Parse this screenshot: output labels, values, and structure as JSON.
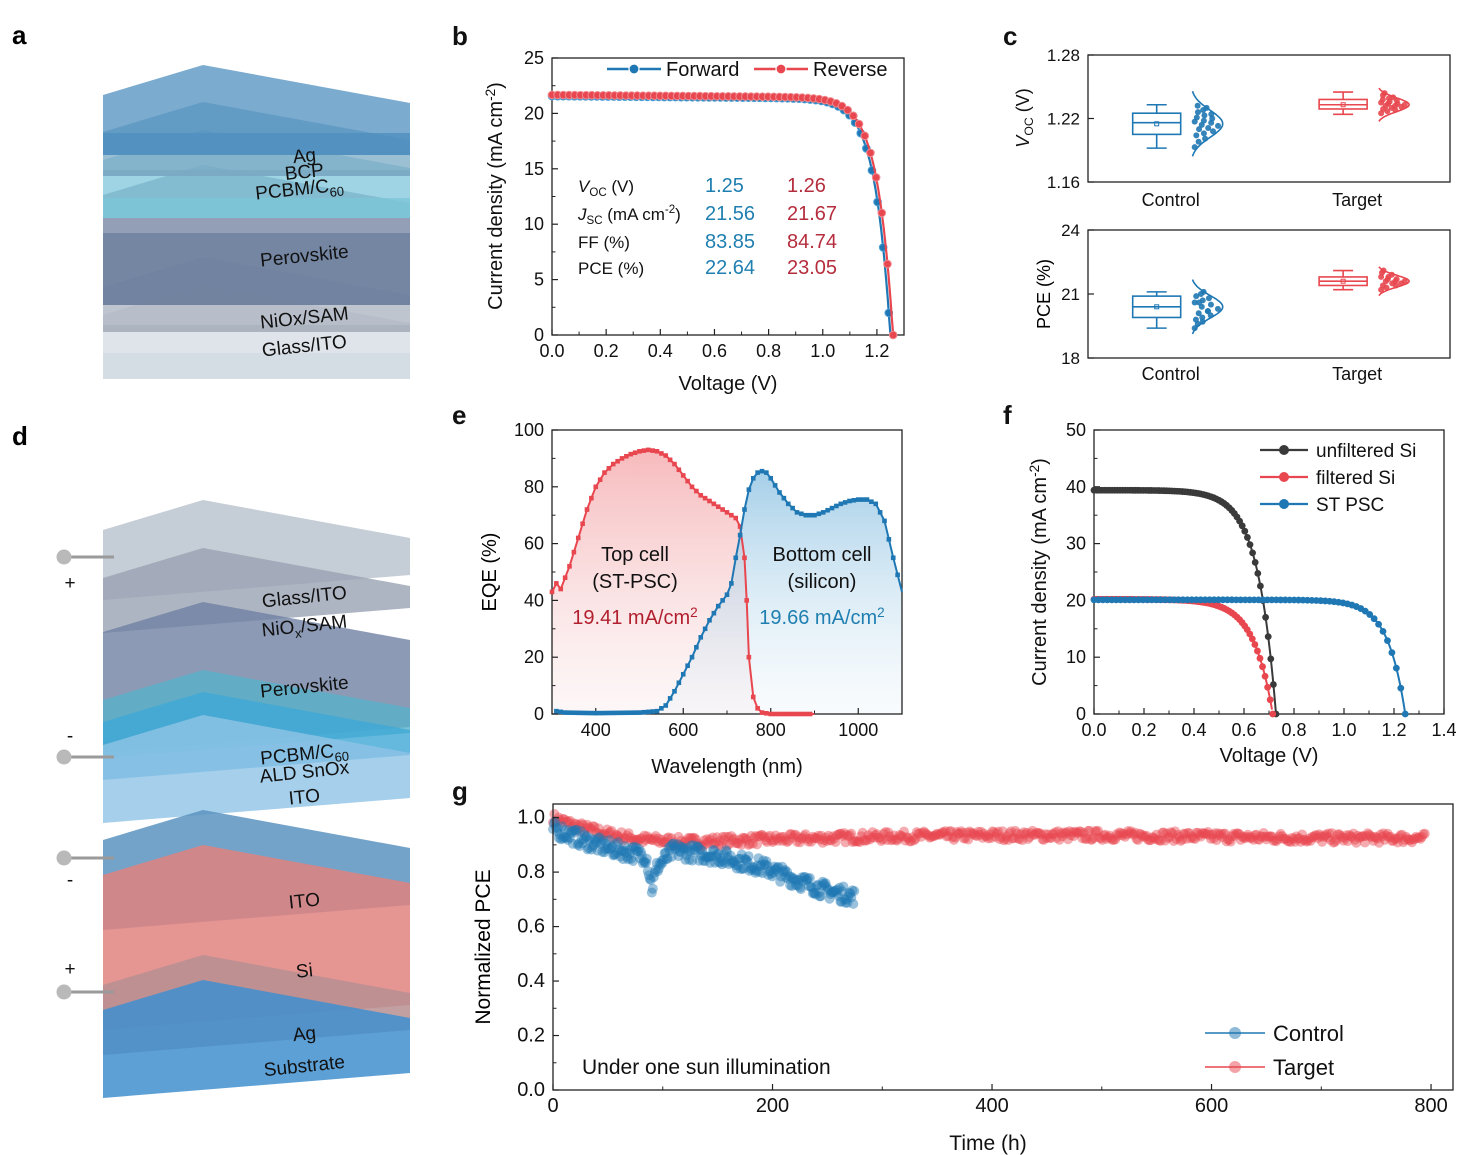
{
  "colors": {
    "blue": "#1f78b4",
    "blue_marker": "#2a86c6",
    "red": "#e8474f",
    "dark_red": "#b22030",
    "text_blue": "#1f7fb0",
    "text_red": "#b52d3d",
    "black": "#333333",
    "layer_blue": "#4f87ad",
    "layer_perovskite": "#7688a8",
    "layer_etl": "#5bb4cf",
    "layer_glass": "#c9d2dc",
    "layer_si": "#e59793",
    "layer_ito": "#6aa3c8"
  },
  "panels": {
    "a": {
      "label": "a",
      "layers": [
        "Ag",
        "BCP",
        "PCBM/C60",
        "Perovskite",
        "NiOx/SAM",
        "Glass/ITO"
      ]
    },
    "d": {
      "label": "d",
      "top_layers": [
        "Glass/ITO",
        "NiOx/SAM",
        "Perovskite",
        "PCBM/C60",
        "ALD SnOx",
        "ITO"
      ],
      "bottom_layers": [
        "ITO",
        "Si",
        "Ag",
        "Substrate"
      ],
      "signs": [
        "+",
        "-",
        "-",
        "+"
      ]
    }
  },
  "chart_data": [
    {
      "id": "b",
      "type": "line",
      "panel_label": "b",
      "xlabel": "Voltage (V)",
      "ylabel": "Current density (mA cm-2)",
      "xlim": [
        0,
        1.3
      ],
      "ylim": [
        0,
        25
      ],
      "xticks": [
        "0.0",
        "0.2",
        "0.4",
        "0.6",
        "0.8",
        "1.0",
        "1.2"
      ],
      "yticks": [
        "0",
        "5",
        "10",
        "15",
        "20",
        "25"
      ],
      "legend": "top-right",
      "series": [
        {
          "name": "Forward",
          "color": "#1f78b4",
          "jsc": 21.56,
          "voc": 1.25,
          "n": 3.2,
          "points": [
            [
              0.0,
              21.56
            ],
            [
              0.2,
              21.52
            ],
            [
              0.4,
              21.48
            ],
            [
              0.6,
              21.43
            ],
            [
              0.8,
              21.35
            ],
            [
              1.0,
              21.1
            ],
            [
              1.05,
              20.8
            ],
            [
              1.1,
              19.8
            ],
            [
              1.15,
              16.8
            ],
            [
              1.2,
              10.5
            ],
            [
              1.23,
              5.4
            ],
            [
              1.25,
              0.0
            ]
          ]
        },
        {
          "name": "Reverse",
          "color": "#e8474f",
          "jsc": 21.67,
          "voc": 1.26,
          "n": 3.5,
          "points": [
            [
              0.0,
              21.67
            ],
            [
              0.2,
              21.64
            ],
            [
              0.4,
              21.6
            ],
            [
              0.6,
              21.57
            ],
            [
              0.8,
              21.5
            ],
            [
              1.0,
              21.3
            ],
            [
              1.05,
              21.1
            ],
            [
              1.1,
              20.3
            ],
            [
              1.15,
              17.8
            ],
            [
              1.2,
              12.0
            ],
            [
              1.23,
              6.5
            ],
            [
              1.26,
              0.0
            ]
          ]
        }
      ],
      "table": {
        "rows": [
          {
            "label": "VOC (V)",
            "forward": "1.25",
            "reverse": "1.26"
          },
          {
            "label": "JSC (mA cm-2)",
            "forward": "21.56",
            "reverse": "21.67"
          },
          {
            "label": "FF (%)",
            "forward": "83.85",
            "reverse": "84.74"
          },
          {
            "label": "PCE (%)",
            "forward": "22.64",
            "reverse": "23.05"
          }
        ]
      }
    },
    {
      "id": "c1",
      "type": "box",
      "panel_label": "c",
      "ylabel": "VOC (V)",
      "ylim": [
        1.16,
        1.28
      ],
      "yticks": [
        "1.16",
        "1.22",
        "1.28"
      ],
      "categories": [
        "Control",
        "Target"
      ],
      "boxes": [
        {
          "name": "Control",
          "color": "#1f78b4",
          "min": 1.192,
          "q1": 1.205,
          "median": 1.216,
          "mean": 1.215,
          "q3": 1.225,
          "max": 1.233,
          "points": [
            1.193,
            1.198,
            1.201,
            1.204,
            1.206,
            1.208,
            1.21,
            1.211,
            1.213,
            1.214,
            1.216,
            1.217,
            1.218,
            1.22,
            1.221,
            1.223,
            1.224,
            1.226,
            1.228,
            1.23,
            1.232
          ]
        },
        {
          "name": "Target",
          "color": "#e8474f",
          "min": 1.224,
          "q1": 1.229,
          "median": 1.233,
          "mean": 1.233,
          "q3": 1.238,
          "max": 1.245,
          "points": [
            1.225,
            1.227,
            1.228,
            1.229,
            1.23,
            1.231,
            1.232,
            1.232,
            1.233,
            1.234,
            1.234,
            1.235,
            1.236,
            1.237,
            1.238,
            1.239,
            1.24,
            1.242,
            1.244
          ]
        }
      ]
    },
    {
      "id": "c2",
      "type": "box",
      "panel_label": "",
      "ylabel": "PCE (%)",
      "ylim": [
        18,
        24
      ],
      "yticks": [
        "18",
        "21",
        "24"
      ],
      "categories": [
        "Control",
        "Target"
      ],
      "boxes": [
        {
          "name": "Control",
          "color": "#1f78b4",
          "min": 19.4,
          "q1": 19.9,
          "median": 20.4,
          "mean": 20.4,
          "q3": 20.9,
          "max": 21.1,
          "points": [
            19.4,
            19.6,
            19.7,
            19.8,
            19.9,
            20.0,
            20.1,
            20.2,
            20.3,
            20.4,
            20.5,
            20.6,
            20.7,
            20.8,
            20.9,
            21.0,
            21.1,
            20.6,
            20.2
          ]
        },
        {
          "name": "Target",
          "color": "#e8474f",
          "min": 21.2,
          "q1": 21.4,
          "median": 21.6,
          "mean": 21.6,
          "q3": 21.8,
          "max": 22.1,
          "points": [
            21.2,
            21.3,
            21.4,
            21.4,
            21.5,
            21.5,
            21.6,
            21.6,
            21.6,
            21.7,
            21.7,
            21.8,
            21.8,
            21.9,
            22.0,
            22.1
          ]
        }
      ]
    },
    {
      "id": "e",
      "type": "area",
      "panel_label": "e",
      "xlabel": "Wavelength (nm)",
      "ylabel": "EQE (%)",
      "xlim": [
        300,
        1100
      ],
      "ylim": [
        0,
        100
      ],
      "xticks": [
        "400",
        "600",
        "800",
        "1000"
      ],
      "yticks": [
        "0",
        "20",
        "40",
        "60",
        "80",
        "100"
      ],
      "series": [
        {
          "name": "Top cell",
          "color": "#e8474f",
          "points": [
            [
              300,
              43
            ],
            [
              310,
              46
            ],
            [
              320,
              44
            ],
            [
              330,
              48
            ],
            [
              340,
              52
            ],
            [
              360,
              62
            ],
            [
              380,
              72
            ],
            [
              400,
              80
            ],
            [
              420,
              85
            ],
            [
              440,
              88
            ],
            [
              460,
              90
            ],
            [
              480,
              91.5
            ],
            [
              500,
              92.5
            ],
            [
              520,
              93
            ],
            [
              540,
              92.5
            ],
            [
              560,
              91
            ],
            [
              580,
              88
            ],
            [
              600,
              84
            ],
            [
              620,
              80
            ],
            [
              640,
              77
            ],
            [
              660,
              75
            ],
            [
              680,
              73
            ],
            [
              700,
              71
            ],
            [
              720,
              69
            ],
            [
              730,
              66
            ],
            [
              740,
              55
            ],
            [
              745,
              40
            ],
            [
              750,
              20
            ],
            [
              760,
              6
            ],
            [
              770,
              2
            ],
            [
              780,
              0.5
            ],
            [
              800,
              0
            ],
            [
              900,
              0
            ]
          ]
        },
        {
          "name": "Bottom cell",
          "color": "#1f78b4",
          "points": [
            [
              310,
              1
            ],
            [
              330,
              0.5
            ],
            [
              400,
              0.3
            ],
            [
              500,
              0.5
            ],
            [
              540,
              1
            ],
            [
              560,
              3
            ],
            [
              580,
              8
            ],
            [
              600,
              14
            ],
            [
              620,
              20
            ],
            [
              640,
              27
            ],
            [
              660,
              33
            ],
            [
              680,
              38
            ],
            [
              700,
              42
            ],
            [
              710,
              46
            ],
            [
              720,
              55
            ],
            [
              730,
              63
            ],
            [
              740,
              72
            ],
            [
              750,
              79
            ],
            [
              760,
              83
            ],
            [
              770,
              85
            ],
            [
              780,
              85.5
            ],
            [
              790,
              85
            ],
            [
              800,
              83
            ],
            [
              820,
              78
            ],
            [
              840,
              74
            ],
            [
              860,
              71
            ],
            [
              880,
              70
            ],
            [
              900,
              70
            ],
            [
              920,
              71
            ],
            [
              940,
              72.5
            ],
            [
              960,
              74
            ],
            [
              980,
              75
            ],
            [
              1000,
              75.5
            ],
            [
              1020,
              75.5
            ],
            [
              1040,
              74
            ],
            [
              1060,
              68
            ],
            [
              1080,
              55
            ],
            [
              1100,
              43
            ]
          ]
        }
      ],
      "annotations": {
        "top_title": "Top cell",
        "top_sub": "(ST-PSC)",
        "top_jsc": "19.41 mA/cm2",
        "bottom_title": "Bottom cell",
        "bottom_sub": "(silicon)",
        "bottom_jsc": "19.66 mA/cm2"
      }
    },
    {
      "id": "f",
      "type": "line",
      "panel_label": "f",
      "xlabel": "Voltage (V)",
      "ylabel": "Current density (mA cm-2)",
      "xlim": [
        0,
        1.4
      ],
      "ylim": [
        0,
        50
      ],
      "xticks": [
        "0.0",
        "0.2",
        "0.4",
        "0.6",
        "0.8",
        "1.0",
        "1.2",
        "1.4"
      ],
      "yticks": [
        "0",
        "10",
        "20",
        "30",
        "40",
        "50"
      ],
      "legend": "top-right",
      "series": [
        {
          "name": "unfiltered Si",
          "color": "#3a3a3a",
          "jsc": 39.4,
          "voc": 0.728,
          "n": 1.65
        },
        {
          "name": "filtered Si",
          "color": "#e8474f",
          "jsc": 20.2,
          "voc": 0.715,
          "n": 1.55
        },
        {
          "name": "ST PSC",
          "color": "#1f78b4",
          "jsc": 20.1,
          "voc": 1.245,
          "n": 3.0
        }
      ]
    },
    {
      "id": "g",
      "type": "scatter",
      "panel_label": "g",
      "xlabel": "Time (h)",
      "ylabel": "Normalized PCE",
      "xlim": [
        0,
        820
      ],
      "ylim": [
        0,
        1.05
      ],
      "xticks": [
        "0",
        "200",
        "400",
        "600",
        "800"
      ],
      "yticks": [
        "0.0",
        "0.2",
        "0.4",
        "0.6",
        "0.8",
        "1.0"
      ],
      "legend": "bottom-right",
      "annotation": "Under one sun illumination",
      "series": [
        {
          "name": "Control",
          "color": "#1f78b4",
          "x_end": 275,
          "trend": [
            [
              0,
              0.96
            ],
            [
              20,
              0.93
            ],
            [
              40,
              0.9
            ],
            [
              60,
              0.88
            ],
            [
              85,
              0.86
            ],
            [
              90,
              0.74
            ],
            [
              95,
              0.82
            ],
            [
              110,
              0.88
            ],
            [
              130,
              0.87
            ],
            [
              150,
              0.86
            ],
            [
              170,
              0.84
            ],
            [
              190,
              0.82
            ],
            [
              210,
              0.79
            ],
            [
              230,
              0.76
            ],
            [
              250,
              0.73
            ],
            [
              275,
              0.71
            ]
          ]
        },
        {
          "name": "Target",
          "color": "#e8474f",
          "x_end": 795,
          "trend": [
            [
              0,
              1.0
            ],
            [
              20,
              0.97
            ],
            [
              50,
              0.94
            ],
            [
              80,
              0.92
            ],
            [
              120,
              0.91
            ],
            [
              160,
              0.915
            ],
            [
              200,
              0.92
            ],
            [
              300,
              0.93
            ],
            [
              400,
              0.935
            ],
            [
              500,
              0.935
            ],
            [
              600,
              0.93
            ],
            [
              700,
              0.925
            ],
            [
              795,
              0.925
            ]
          ]
        }
      ]
    }
  ]
}
